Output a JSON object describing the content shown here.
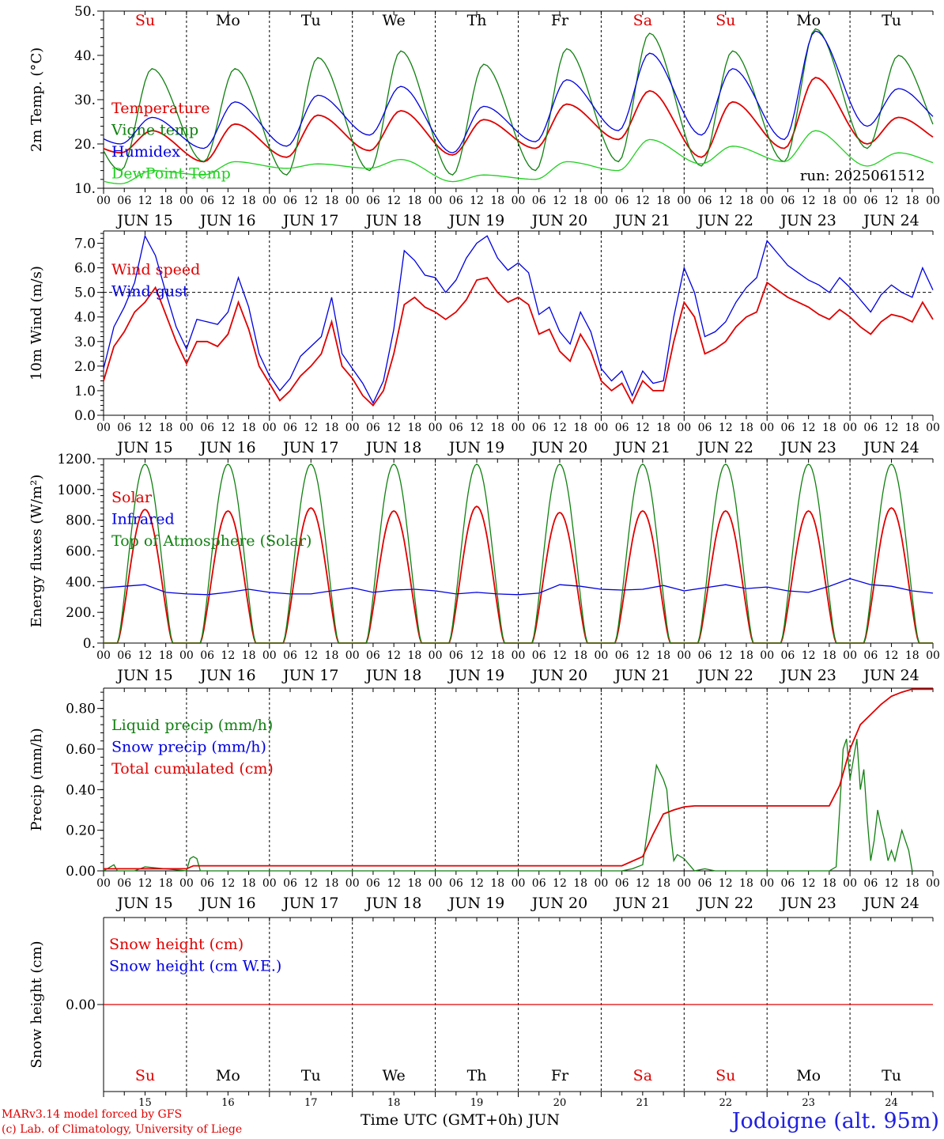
{
  "run_label": "run: 2025061512",
  "day_names": [
    "Su",
    "Mo",
    "Tu",
    "We",
    "Th",
    "Fr",
    "Sa",
    "Su",
    "Mo",
    "Tu"
  ],
  "weekend_days": [
    0,
    6,
    7
  ],
  "date_labels": [
    "JUN 15",
    "JUN 16",
    "JUN 17",
    "JUN 18",
    "JUN 19",
    "JUN 20",
    "JUN 21",
    "JUN 22",
    "JUN 23",
    "JUN 24"
  ],
  "bottom_day_numbers": [
    "15",
    "16",
    "17",
    "18",
    "19",
    "20",
    "21",
    "22",
    "23",
    "24"
  ],
  "hour_ticks": [
    "00",
    "06",
    "12",
    "18"
  ],
  "end_tick": "00",
  "footer": {
    "model": "MARv3.14 model forced by GFS",
    "copyright": "(c) Lab. of Climatology, University of Liege",
    "xlabel": "Time UTC (GMT+0h) JUN",
    "station": "Jodoigne (alt. 95m)"
  },
  "colors": {
    "red": "#e00000",
    "green": "#108010",
    "blue": "#0000e0",
    "light_green": "#20d020",
    "axis": "#000000"
  },
  "chart_data": [
    {
      "id": "temperature",
      "type": "line",
      "ylabel": "2m Temp. (°C)",
      "ylim": [
        10,
        50
      ],
      "yticks": [
        "10.",
        "20.",
        "30.",
        "40.",
        "50."
      ],
      "ytick_values": [
        10,
        20,
        30,
        40,
        50
      ],
      "legend_placement": "top-left",
      "series": [
        {
          "name": "Temperature",
          "color": "red",
          "type": "daily",
          "min": [
            18,
            16,
            17,
            18.5,
            17.5,
            19,
            21,
            17,
            19,
            20
          ],
          "max": [
            23,
            24.5,
            26.5,
            27.5,
            25.5,
            29,
            32,
            29.5,
            35,
            26
          ]
        },
        {
          "name": "Vigne temp",
          "color": "green",
          "type": "daily",
          "min": [
            14,
            16,
            13,
            14,
            13,
            14,
            16,
            15,
            16,
            19
          ],
          "max": [
            37,
            37,
            39.5,
            41,
            38,
            41.5,
            45,
            41,
            46,
            40
          ]
        },
        {
          "name": "Humidex",
          "color": "blue",
          "type": "daily",
          "min": [
            20,
            19,
            19.5,
            22,
            18,
            20.5,
            23,
            22,
            21,
            24
          ],
          "max": [
            26,
            29.5,
            31,
            33,
            28.5,
            34.5,
            40.5,
            37,
            45.5,
            32.5
          ]
        },
        {
          "name": "DewPoint Temp",
          "color": "light_green",
          "type": "daily",
          "min": [
            11,
            13,
            14.5,
            14.5,
            11.5,
            12,
            14,
            15.5,
            16,
            15
          ],
          "max": [
            14,
            16,
            15.5,
            16.5,
            13,
            16,
            21,
            19.5,
            23,
            18
          ]
        }
      ]
    },
    {
      "id": "wind",
      "type": "line",
      "ylabel": "10m Wind (m/s)",
      "ylim": [
        0,
        7.5
      ],
      "yticks": [
        "0.0",
        "1.0",
        "2.0",
        "3.0",
        "4.0",
        "5.0",
        "6.0",
        "7.0"
      ],
      "ytick_values": [
        0,
        1,
        2,
        3,
        4,
        5,
        6,
        7
      ],
      "reference_line": 5,
      "legend_placement": "top-left",
      "series": [
        {
          "name": "Wind speed",
          "color": "red",
          "type": "points",
          "x_hours": [
            0,
            3,
            6,
            9,
            12,
            15,
            18,
            21,
            24,
            27,
            30,
            33,
            36,
            39,
            42,
            45,
            48,
            51,
            54,
            57,
            60,
            63,
            66,
            69,
            72,
            75,
            78,
            81,
            84,
            87,
            90,
            93,
            96,
            99,
            102,
            105,
            108,
            111,
            114,
            117,
            120,
            123,
            126,
            129,
            132,
            135,
            138,
            141,
            144,
            147,
            150,
            153,
            156,
            159,
            162,
            165,
            168,
            171,
            174,
            177,
            180,
            183,
            186,
            189,
            192,
            195,
            198,
            201,
            204,
            207,
            210,
            213,
            216,
            219,
            222,
            225,
            228,
            231,
            234,
            237,
            240
          ],
          "values": [
            1.4,
            2.8,
            3.4,
            4.2,
            4.6,
            5.2,
            4.1,
            3.0,
            2.1,
            3.0,
            3.0,
            2.8,
            3.3,
            4.6,
            3.5,
            2.0,
            1.3,
            0.6,
            1.0,
            1.6,
            2.0,
            2.5,
            3.8,
            2.0,
            1.5,
            0.8,
            0.4,
            1.0,
            2.5,
            4.5,
            4.8,
            4.4,
            4.2,
            3.9,
            4.2,
            4.7,
            5.5,
            5.6,
            5.0,
            4.6,
            4.8,
            4.5,
            3.3,
            3.5,
            2.6,
            2.2,
            3.3,
            2.6,
            1.4,
            1.0,
            1.3,
            0.5,
            1.4,
            1.0,
            1.0,
            3.0,
            4.6,
            4.0,
            2.5,
            2.7,
            3.0,
            3.6,
            4.0,
            4.2,
            5.4,
            5.1,
            4.8,
            4.6,
            4.4,
            4.1,
            3.9,
            4.3,
            4.0,
            3.6,
            3.3,
            3.8,
            4.1,
            4.0,
            3.8,
            4.6,
            3.9
          ]
        },
        {
          "name": "Wind gust",
          "color": "blue",
          "type": "points",
          "x_hours": [
            0,
            3,
            6,
            9,
            12,
            15,
            18,
            21,
            24,
            27,
            30,
            33,
            36,
            39,
            42,
            45,
            48,
            51,
            54,
            57,
            60,
            63,
            66,
            69,
            72,
            75,
            78,
            81,
            84,
            87,
            90,
            93,
            96,
            99,
            102,
            105,
            108,
            111,
            114,
            117,
            120,
            123,
            126,
            129,
            132,
            135,
            138,
            141,
            144,
            147,
            150,
            153,
            156,
            159,
            162,
            165,
            168,
            171,
            174,
            177,
            180,
            183,
            186,
            189,
            192,
            195,
            198,
            201,
            204,
            207,
            210,
            213,
            216,
            219,
            222,
            225,
            228,
            231,
            234,
            237,
            240
          ],
          "values": [
            1.9,
            3.6,
            4.4,
            5.4,
            7.3,
            6.5,
            5.0,
            3.6,
            2.7,
            3.9,
            3.8,
            3.7,
            4.2,
            5.6,
            4.4,
            2.5,
            1.6,
            1.0,
            1.5,
            2.4,
            2.8,
            3.2,
            4.8,
            2.5,
            1.9,
            1.3,
            0.5,
            1.4,
            3.5,
            6.7,
            6.3,
            5.7,
            5.6,
            5.0,
            5.5,
            6.4,
            7.0,
            7.3,
            6.4,
            5.9,
            6.2,
            5.8,
            4.1,
            4.4,
            3.4,
            2.9,
            4.2,
            3.4,
            1.9,
            1.4,
            1.8,
            0.8,
            1.8,
            1.3,
            1.4,
            4.0,
            6.0,
            5.0,
            3.2,
            3.4,
            3.8,
            4.6,
            5.2,
            5.6,
            7.1,
            6.6,
            6.1,
            5.8,
            5.5,
            5.3,
            5.0,
            5.6,
            5.2,
            4.7,
            4.2,
            4.9,
            5.3,
            5.0,
            4.8,
            6.0,
            5.1
          ]
        }
      ]
    },
    {
      "id": "energy",
      "type": "line",
      "ylabel": "Energy fluxes (W/m²)",
      "ylim": [
        0,
        1200
      ],
      "yticks": [
        "0.",
        "200.",
        "400.",
        "600.",
        "800.",
        "1000.",
        "1200."
      ],
      "ytick_values": [
        0,
        200,
        400,
        600,
        800,
        1000,
        1200
      ],
      "legend_placement": "top-left",
      "series": [
        {
          "name": "Solar",
          "color": "red",
          "type": "daily_peak",
          "peaks": [
            870,
            860,
            880,
            860,
            890,
            850,
            860,
            860,
            860,
            880
          ]
        },
        {
          "name": "Infrared",
          "color": "blue",
          "type": "points",
          "x_hours": [
            0,
            6,
            12,
            18,
            24,
            30,
            36,
            42,
            48,
            54,
            60,
            66,
            72,
            78,
            84,
            90,
            96,
            102,
            108,
            114,
            120,
            126,
            132,
            138,
            144,
            150,
            156,
            162,
            168,
            174,
            180,
            186,
            192,
            198,
            204,
            210,
            216,
            222,
            228,
            234,
            240
          ],
          "values": [
            360,
            370,
            380,
            330,
            320,
            315,
            330,
            350,
            330,
            320,
            320,
            340,
            360,
            330,
            345,
            350,
            340,
            320,
            330,
            320,
            315,
            325,
            380,
            370,
            350,
            345,
            350,
            375,
            340,
            360,
            380,
            355,
            365,
            340,
            330,
            370,
            420,
            380,
            370,
            340,
            325
          ]
        },
        {
          "name": "Top of Atmosphere (Solar)",
          "color": "green",
          "type": "daily_peak",
          "peaks": [
            1165,
            1165,
            1165,
            1165,
            1165,
            1165,
            1165,
            1165,
            1165,
            1165
          ]
        }
      ]
    },
    {
      "id": "precip",
      "type": "line",
      "ylabel": "Precip (mm/h)",
      "ylim": [
        0,
        0.9
      ],
      "yticks": [
        "0.00",
        "0.20",
        "0.40",
        "0.60",
        "0.80"
      ],
      "ytick_values": [
        0,
        0.2,
        0.4,
        0.6,
        0.8
      ],
      "legend_placement": "top-left",
      "series": [
        {
          "name": "Liquid precip (mm/h)",
          "color": "green",
          "type": "points",
          "x_hours": [
            0,
            3,
            4,
            6,
            9,
            12,
            24,
            25,
            26,
            27,
            28,
            30,
            150,
            153,
            156,
            159,
            160,
            162,
            163,
            164,
            165,
            166,
            168,
            171,
            174,
            177,
            210,
            212,
            213,
            214,
            215,
            216,
            217,
            218,
            219,
            220,
            221,
            222,
            223,
            224,
            225,
            226,
            227,
            228,
            229,
            231,
            233,
            234
          ],
          "values": [
            0,
            0.03,
            0,
            0,
            0,
            0.02,
            0,
            0.06,
            0.07,
            0.06,
            0,
            0,
            0,
            0.01,
            0.03,
            0.4,
            0.52,
            0.45,
            0.4,
            0.2,
            0.05,
            0.08,
            0.06,
            0.0,
            0.01,
            0,
            0,
            0.02,
            0.3,
            0.6,
            0.65,
            0.45,
            0.55,
            0.65,
            0.4,
            0.5,
            0.25,
            0.05,
            0.15,
            0.3,
            0.22,
            0.15,
            0.05,
            0.1,
            0.05,
            0.2,
            0.1,
            0
          ]
        },
        {
          "name": "Snow precip (mm/h)",
          "color": "blue",
          "type": "points",
          "x_hours": [],
          "values": []
        },
        {
          "name": "Total cumulated (cm)",
          "color": "red",
          "type": "points",
          "x_hours": [
            0,
            24,
            26,
            150,
            156,
            159,
            162,
            165,
            168,
            171,
            174,
            210,
            213,
            216,
            219,
            222,
            225,
            228,
            231,
            234,
            237,
            240
          ],
          "values": [
            0.01,
            0.01,
            0.025,
            0.025,
            0.07,
            0.18,
            0.28,
            0.3,
            0.315,
            0.32,
            0.32,
            0.32,
            0.42,
            0.6,
            0.72,
            0.77,
            0.82,
            0.86,
            0.88,
            0.895,
            0.895,
            0.895
          ]
        }
      ]
    },
    {
      "id": "snow",
      "type": "line",
      "ylabel": "Snow height (cm)",
      "ylim": [
        -1,
        1
      ],
      "yticks": [
        "0.00"
      ],
      "ytick_values": [
        0
      ],
      "legend_placement": "top-left",
      "series": [
        {
          "name": "Snow height (cm)",
          "color": "red",
          "type": "points",
          "x_hours": [
            0,
            240
          ],
          "values": [
            0,
            0
          ]
        },
        {
          "name": "Snow height (cm W.E.)",
          "color": "blue",
          "type": "points",
          "x_hours": [],
          "values": []
        }
      ]
    }
  ]
}
